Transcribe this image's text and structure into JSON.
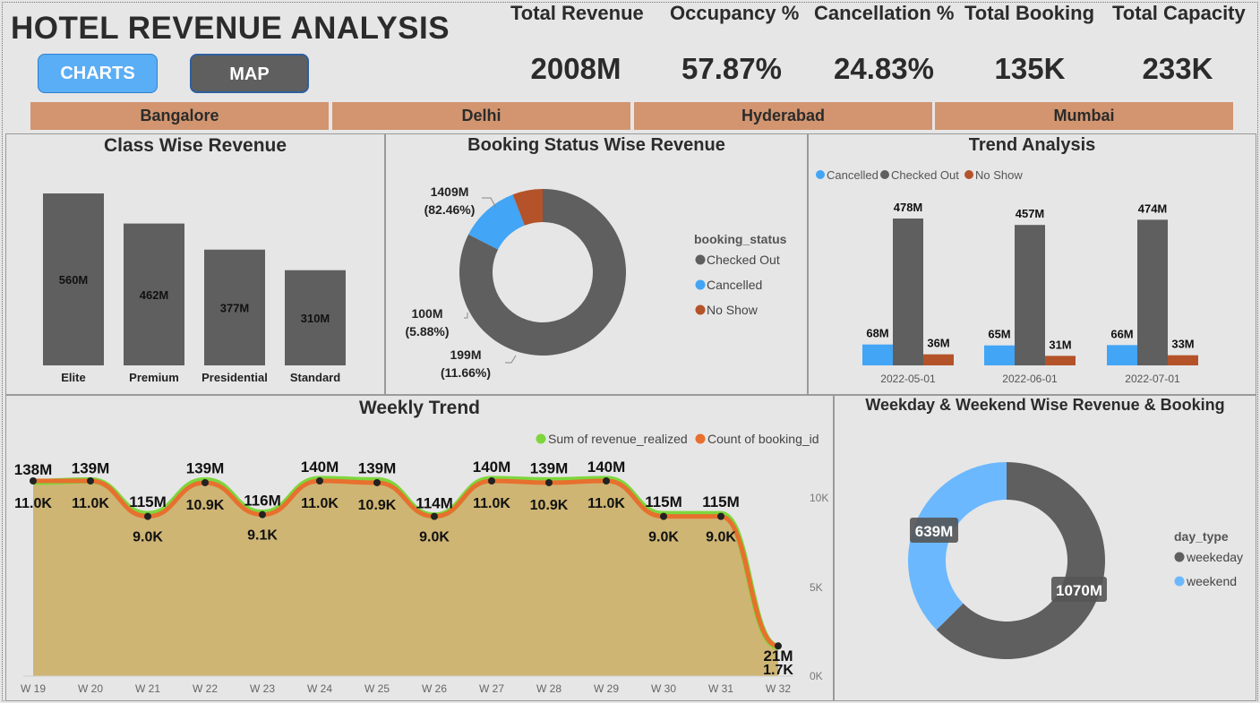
{
  "header": {
    "title": "HOTEL REVENUE ANALYSIS",
    "nav": {
      "charts_label": "CHARTS",
      "map_label": "MAP"
    },
    "kpis": [
      {
        "label": "Total Revenue",
        "value": "2008M"
      },
      {
        "label": "Occupancy %",
        "value": "57.87%"
      },
      {
        "label": "Cancellation %",
        "value": "24.83%"
      },
      {
        "label": "Total Booking",
        "value": "135K"
      },
      {
        "label": "Total Capacity",
        "value": "233K"
      }
    ],
    "cities": [
      "Bangalore",
      "Delhi",
      "Hyderabad",
      "Mumbai"
    ]
  },
  "colors": {
    "bar_gray": "#5f5f5f",
    "checked_out": "#5f5f5f",
    "cancelled": "#42a5f5",
    "no_show": "#b4532a",
    "revenue_line": "#7ed63c",
    "booking_line": "#e8702e",
    "area_fill": "#ceb574",
    "weekend": "#6cb8ff"
  },
  "chart_data": [
    {
      "type": "bar",
      "title": "Class Wise Revenue",
      "categories": [
        "Elite",
        "Premium",
        "Presidential",
        "Standard"
      ],
      "values": [
        560,
        462,
        377,
        310
      ],
      "value_labels": [
        "560M",
        "462M",
        "377M",
        "310M"
      ]
    },
    {
      "type": "pie",
      "title": "Booking Status Wise Revenue",
      "legend_title": "booking_status",
      "legend_position": "right",
      "slices": [
        {
          "name": "Checked Out",
          "value": 1409,
          "label": "1409M",
          "pct": "(82.46%)",
          "color": "#5f5f5f"
        },
        {
          "name": "Cancelled",
          "value": 199,
          "label": "199M",
          "pct": "(11.66%)",
          "color": "#42a5f5"
        },
        {
          "name": "No Show",
          "value": 100,
          "label": "100M",
          "pct": "(5.88%)",
          "color": "#b4532a"
        }
      ]
    },
    {
      "type": "bar",
      "title": "Trend Analysis",
      "legend_position": "top-left",
      "categories": [
        "2022-05-01",
        "2022-06-01",
        "2022-07-01"
      ],
      "series": [
        {
          "name": "Cancelled",
          "color": "#42a5f5",
          "values": [
            68,
            65,
            66
          ],
          "labels": [
            "68M",
            "65M",
            "66M"
          ]
        },
        {
          "name": "Checked Out",
          "color": "#5f5f5f",
          "values": [
            478,
            457,
            474
          ],
          "labels": [
            "478M",
            "457M",
            "474M"
          ]
        },
        {
          "name": "No Show",
          "color": "#b4532a",
          "values": [
            36,
            31,
            33
          ],
          "labels": [
            "36M",
            "31M",
            "33M"
          ]
        }
      ]
    },
    {
      "type": "line",
      "title": "Weekly Trend",
      "legend_position": "top-right",
      "x": [
        "W 19",
        "W 20",
        "W 21",
        "W 22",
        "W 23",
        "W 24",
        "W 25",
        "W 26",
        "W 27",
        "W 28",
        "W 29",
        "W 30",
        "W 31",
        "W 32"
      ],
      "series": [
        {
          "name": "Sum of revenue_realized",
          "color": "#7ed63c",
          "values": [
            138,
            139,
            115,
            139,
            116,
            140,
            139,
            114,
            140,
            139,
            140,
            115,
            115,
            21
          ],
          "labels": [
            "138M",
            "139M",
            "115M",
            "139M",
            "116M",
            "140M",
            "139M",
            "114M",
            "140M",
            "139M",
            "140M",
            "115M",
            "115M",
            "21M"
          ]
        },
        {
          "name": "Count of booking_id",
          "color": "#e8702e",
          "values": [
            11.0,
            11.0,
            9.0,
            10.9,
            9.1,
            11.0,
            10.9,
            9.0,
            11.0,
            10.9,
            11.0,
            9.0,
            9.0,
            1.7
          ],
          "labels": [
            "11.0K",
            "11.0K",
            "9.0K",
            "10.9K",
            "9.1K",
            "11.0K",
            "10.9K",
            "9.0K",
            "11.0K",
            "10.9K",
            "11.0K",
            "9.0K",
            "9.0K",
            "1.7K"
          ]
        }
      ],
      "y2_ticks": [
        "10K",
        "5K",
        "0K"
      ],
      "y2lim": [
        0,
        10
      ]
    },
    {
      "type": "pie",
      "title": "Weekday & Weekend Wise Revenue & Booking",
      "legend_title": "day_type",
      "legend_position": "right",
      "slices": [
        {
          "name": "weekeday",
          "value": 1070,
          "label": "1070M",
          "color": "#5f5f5f"
        },
        {
          "name": "weekend",
          "value": 639,
          "label": "639M",
          "color": "#6cb8ff"
        }
      ]
    }
  ]
}
